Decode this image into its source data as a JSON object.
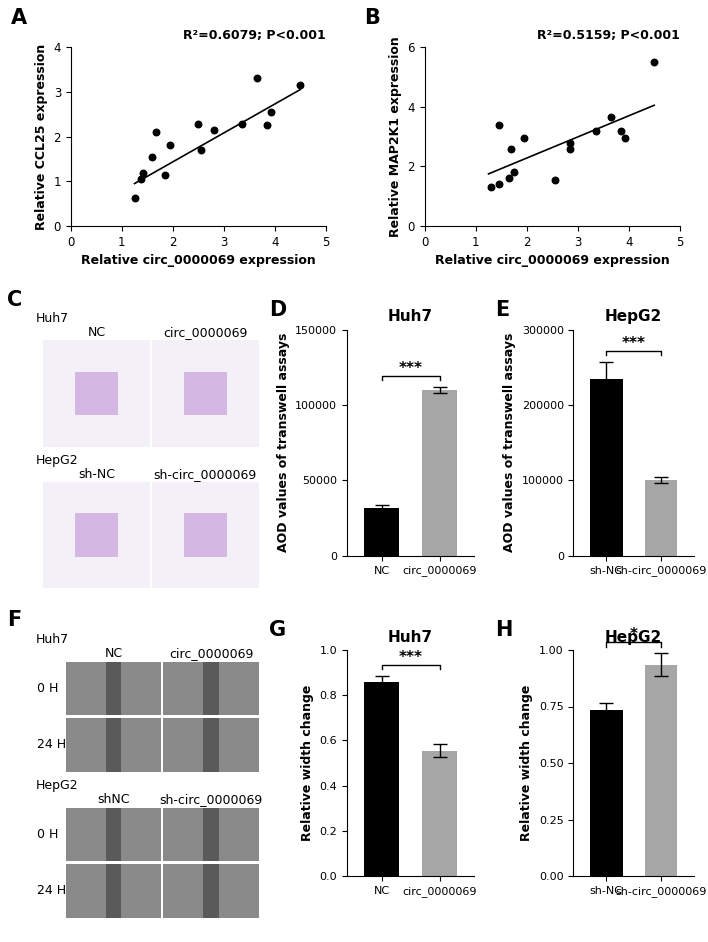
{
  "chart_data": [
    {
      "type": "scatter",
      "panel": "A",
      "annotation": "R²=0.6079; P<0.001",
      "x_label": "Relative circ_0000069 expression",
      "y_label": "Relative CCL25 expression",
      "xlim": [
        0,
        5
      ],
      "xticks": [
        0,
        1,
        2,
        3,
        4,
        5
      ],
      "ylim": [
        0,
        4
      ],
      "yticks": [
        0,
        1,
        2,
        3,
        4
      ],
      "series": [
        {
          "type": "scatter",
          "color": "#000000",
          "marker": "o",
          "x": [
            1.25,
            1.38,
            1.42,
            1.6,
            1.68,
            1.85,
            1.95,
            2.5,
            2.55,
            2.8,
            3.35,
            3.65,
            3.85,
            3.93,
            4.5
          ],
          "values": [
            0.62,
            1.05,
            1.18,
            1.55,
            2.1,
            1.15,
            1.82,
            2.28,
            1.7,
            2.15,
            2.28,
            3.3,
            2.25,
            2.55,
            3.15
          ]
        },
        {
          "type": "line",
          "color": "#000000",
          "line_style": "solid",
          "x": [
            1.25,
            4.5
          ],
          "values": [
            0.95,
            3.05
          ]
        }
      ]
    },
    {
      "type": "scatter",
      "panel": "B",
      "annotation": "R²=0.5159; P<0.001",
      "x_label": "Relative circ_0000069 expression",
      "y_label": "Relative MAP2K1 expression",
      "xlim": [
        0,
        5
      ],
      "xticks": [
        0,
        1,
        2,
        3,
        4,
        5
      ],
      "ylim": [
        0,
        6
      ],
      "yticks": [
        0,
        2,
        4,
        6
      ],
      "series": [
        {
          "type": "scatter",
          "color": "#000000",
          "marker": "o",
          "x": [
            1.3,
            1.45,
            1.45,
            1.65,
            1.7,
            1.75,
            1.95,
            2.55,
            2.85,
            2.85,
            3.35,
            3.65,
            3.85,
            3.93,
            4.5
          ],
          "values": [
            1.3,
            1.4,
            3.4,
            1.6,
            2.6,
            1.8,
            2.95,
            1.55,
            2.6,
            2.8,
            3.2,
            3.65,
            3.2,
            2.95,
            5.5
          ]
        },
        {
          "type": "line",
          "color": "#000000",
          "line_style": "solid",
          "x": [
            1.25,
            4.5
          ],
          "values": [
            1.75,
            4.05
          ]
        }
      ]
    },
    {
      "type": "image",
      "panel": "C",
      "groups": [
        {
          "name": "Huh7",
          "columns": [
            "NC",
            "circ_0000069"
          ]
        },
        {
          "name": "HepG2",
          "columns": [
            "sh-NC",
            "sh-circ_0000069"
          ]
        }
      ]
    },
    {
      "type": "bar",
      "panel": "D",
      "title": "Huh7",
      "y_label": "AOD values of transwell assays",
      "categories": [
        "NC",
        "circ_0000069"
      ],
      "values": [
        32000,
        110000
      ],
      "errors": [
        1500,
        2000
      ],
      "colors": [
        "#000000",
        "#a6a6a6"
      ],
      "ylim": [
        0,
        150000
      ],
      "yticks": [
        0,
        50000,
        100000,
        150000
      ],
      "significance": "***"
    },
    {
      "type": "bar",
      "panel": "E",
      "title": "HepG2",
      "y_label": "AOD values of transwell assays",
      "categories": [
        "sh-NC",
        "sh-circ_0000069"
      ],
      "values": [
        235000,
        101000
      ],
      "errors": [
        22000,
        4000
      ],
      "colors": [
        "#000000",
        "#a6a6a6"
      ],
      "ylim": [
        0,
        300000
      ],
      "yticks": [
        0,
        100000,
        200000,
        300000
      ],
      "significance": "***"
    },
    {
      "type": "image",
      "panel": "F",
      "groups": [
        {
          "name": "Huh7",
          "columns": [
            "NC",
            "circ_0000069"
          ],
          "rows": [
            "0 H",
            "24 H"
          ]
        },
        {
          "name": "HepG2",
          "columns": [
            "shNC",
            "sh-circ_0000069"
          ],
          "rows": [
            "0 H",
            "24 H"
          ]
        }
      ]
    },
    {
      "type": "bar",
      "panel": "G",
      "title": "Huh7",
      "y_label": "Relative width change",
      "categories": [
        "NC",
        "circ_0000069"
      ],
      "values": [
        0.86,
        0.555
      ],
      "errors": [
        0.025,
        0.03
      ],
      "colors": [
        "#000000",
        "#a6a6a6"
      ],
      "ylim": [
        0.0,
        1.0
      ],
      "yticks": [
        0.0,
        0.2,
        0.4,
        0.6,
        0.8,
        1.0
      ],
      "significance": "***"
    },
    {
      "type": "bar",
      "panel": "H",
      "title": "HepG2",
      "y_label": "Relative width change",
      "categories": [
        "sh-NC",
        "sh-circ_0000069"
      ],
      "values": [
        0.735,
        0.935
      ],
      "errors": [
        0.03,
        0.05
      ],
      "colors": [
        "#000000",
        "#a6a6a6"
      ],
      "ylim": [
        0.0,
        1.0
      ],
      "yticks": [
        {
          "value": 0.0,
          "label": "0.00"
        },
        {
          "value": 0.25,
          "label": "0.25"
        },
        {
          "value": 0.5,
          "label": "0.50"
        },
        {
          "value": 0.75,
          "label": "0.75"
        },
        {
          "value": 1.0,
          "label": "1.00"
        }
      ],
      "significance": "*"
    }
  ]
}
